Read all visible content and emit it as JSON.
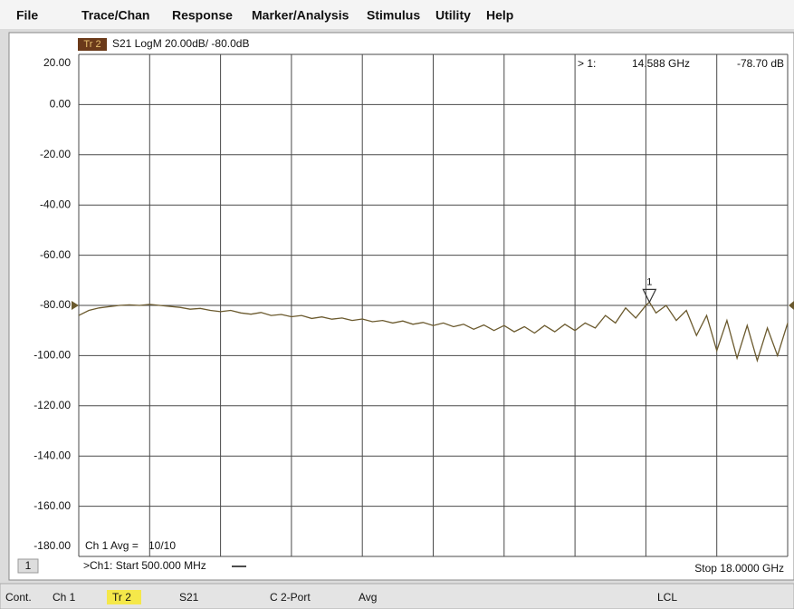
{
  "menu": [
    "File",
    "Trace/Chan",
    "Response",
    "Marker/Analysis",
    "Stimulus",
    "Utility",
    "Help"
  ],
  "trace_badge": "Tr 2",
  "trace_header": "S21 LogM 20.00dB/ -80.0dB",
  "marker_readout": {
    "index": "> 1:",
    "frequency": "14.588 GHz",
    "level": "-78.70 dB"
  },
  "marker": {
    "label": "1",
    "x": 14.588,
    "value": -78.7
  },
  "avg_label": "Ch 1 Avg =",
  "avg_value": "10/10",
  "channel_button": "1",
  "start_label": ">Ch1: Start 500.000 MHz",
  "stop_label": "Stop 18.0000 GHz",
  "status_bar": [
    "Cont.",
    "Ch 1",
    "Tr 2",
    "S21",
    "C 2-Port",
    "Avg",
    "LCL"
  ],
  "chart_data": {
    "type": "line",
    "color": "#6b5a2e",
    "grid": true,
    "ref_level": -80,
    "xlim": [
      0.5,
      18
    ],
    "ylim": [
      -180,
      20
    ],
    "yticks": [
      {
        "value": 20,
        "label": "20.00"
      },
      {
        "value": 0,
        "label": "0.00"
      },
      {
        "value": -20,
        "label": "-20.00"
      },
      {
        "value": -40,
        "label": "-40.00"
      },
      {
        "value": -60,
        "label": "-60.00"
      },
      {
        "value": -80,
        "label": "-80.00"
      },
      {
        "value": -100,
        "label": "-100.00"
      },
      {
        "value": -120,
        "label": "-120.00"
      },
      {
        "value": -140,
        "label": "-140.00"
      },
      {
        "value": -160,
        "label": "-160.00"
      },
      {
        "value": -180,
        "label": "-180.00"
      }
    ],
    "x": [
      0.5,
      0.75,
      1.0,
      1.25,
      1.5,
      1.75,
      2.0,
      2.25,
      2.5,
      2.75,
      3.0,
      3.25,
      3.5,
      3.75,
      4.0,
      4.25,
      4.5,
      4.75,
      5.0,
      5.25,
      5.5,
      5.75,
      6.0,
      6.25,
      6.5,
      6.75,
      7.0,
      7.25,
      7.5,
      7.75,
      8.0,
      8.25,
      8.5,
      8.75,
      9.0,
      9.25,
      9.5,
      9.75,
      10.0,
      10.25,
      10.5,
      10.75,
      11.0,
      11.25,
      11.5,
      11.75,
      12.0,
      12.25,
      12.5,
      12.75,
      13.0,
      13.25,
      13.5,
      13.75,
      14.0,
      14.25,
      14.5,
      14.588,
      14.75,
      15.0,
      15.25,
      15.5,
      15.75,
      16.0,
      16.25,
      16.5,
      16.75,
      17.0,
      17.25,
      17.5,
      17.75,
      18.0
    ],
    "values": [
      -84,
      -82,
      -81,
      -80.5,
      -80,
      -79.8,
      -80,
      -79.6,
      -80,
      -80.4,
      -80.8,
      -81.5,
      -81.2,
      -82,
      -82.5,
      -82,
      -83,
      -83.5,
      -82.8,
      -84,
      -83.6,
      -84.5,
      -84,
      -85.2,
      -84.6,
      -85.5,
      -85,
      -86,
      -85.4,
      -86.5,
      -86,
      -87,
      -86.2,
      -87.5,
      -86.8,
      -88,
      -87,
      -88.5,
      -87.5,
      -89.5,
      -87.8,
      -90,
      -88,
      -90.5,
      -88.5,
      -91,
      -88,
      -90.5,
      -87.5,
      -90,
      -87,
      -89,
      -84,
      -87,
      -81,
      -85,
      -80,
      -78.7,
      -83,
      -80,
      -86,
      -82,
      -92,
      -84,
      -98,
      -86,
      -101,
      -88,
      -102,
      -89,
      -100,
      -87
    ]
  }
}
